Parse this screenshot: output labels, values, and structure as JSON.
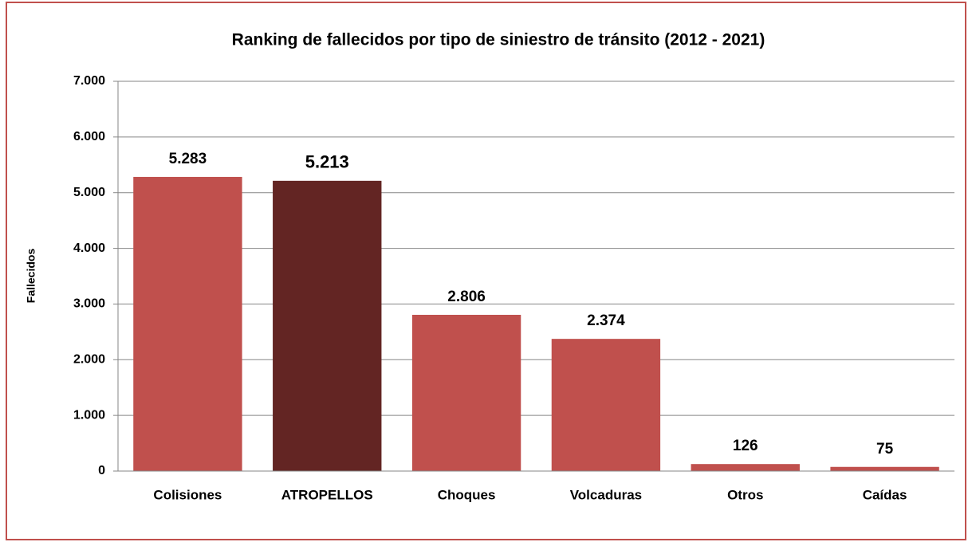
{
  "chart_data": {
    "type": "bar",
    "title": "Ranking de fallecidos por tipo de siniestro de tránsito (2012 - 2021)",
    "y_label": "Fallecidos",
    "categories": [
      "Colisiones",
      "ATROPELLOS",
      "Choques",
      "Volcaduras",
      "Otros",
      "Caídas"
    ],
    "values": [
      5283,
      5213,
      2806,
      2374,
      126,
      75
    ],
    "value_labels": [
      "5.283",
      "5.213",
      "2.806",
      "2.374",
      "126",
      "75"
    ],
    "colors": [
      "#c0504d",
      "#632523",
      "#c0504d",
      "#c0504d",
      "#c0504d",
      "#c0504d"
    ],
    "ylim": [
      0,
      7000
    ],
    "yticks": [
      0,
      {
        "value": 1000,
        "label": "1.000"
      },
      {
        "value": 2000,
        "label": "2.000"
      },
      {
        "value": 3000,
        "label": "3.000"
      },
      {
        "value": 4000,
        "label": "4.000"
      },
      {
        "value": 5000,
        "label": "5.000"
      },
      {
        "value": 6000,
        "label": "6.000"
      },
      {
        "value": 7000,
        "label": "7.000"
      }
    ],
    "grid": true
  }
}
